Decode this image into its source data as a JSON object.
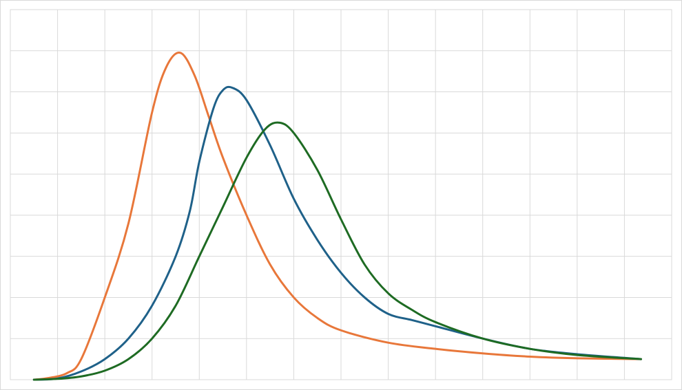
{
  "chart_data": {
    "type": "line",
    "title": "",
    "xlabel": "",
    "ylabel": "",
    "xlim": [
      0,
      14
    ],
    "ylim": [
      0,
      9
    ],
    "grid": true,
    "series": [
      {
        "color": "#e8773a",
        "points": [
          [
            0.5,
            0
          ],
          [
            0.8,
            0.04
          ],
          [
            1.2,
            0.16
          ],
          [
            1.5,
            0.5
          ],
          [
            2.0,
            2.0
          ],
          [
            2.5,
            3.8
          ],
          [
            3.0,
            6.5
          ],
          [
            3.3,
            7.6
          ],
          [
            3.6,
            7.95
          ],
          [
            3.9,
            7.4
          ],
          [
            4.2,
            6.4
          ],
          [
            4.5,
            5.4
          ],
          [
            5.0,
            4.0
          ],
          [
            5.5,
            2.8
          ],
          [
            6.0,
            2.0
          ],
          [
            6.5,
            1.5
          ],
          [
            7.0,
            1.2
          ],
          [
            8.0,
            0.9
          ],
          [
            9.0,
            0.75
          ],
          [
            10.0,
            0.64
          ],
          [
            11.0,
            0.56
          ],
          [
            12.0,
            0.52
          ],
          [
            13.35,
            0.5
          ]
        ]
      },
      {
        "color": "#1f6189",
        "points": [
          [
            0.5,
            0
          ],
          [
            1.0,
            0.03
          ],
          [
            1.5,
            0.2
          ],
          [
            2.0,
            0.5
          ],
          [
            2.5,
            1.0
          ],
          [
            3.0,
            1.8
          ],
          [
            3.5,
            3.0
          ],
          [
            3.8,
            4.1
          ],
          [
            4.0,
            5.3
          ],
          [
            4.3,
            6.6
          ],
          [
            4.5,
            7.04
          ],
          [
            4.7,
            7.1
          ],
          [
            5.0,
            6.8
          ],
          [
            5.5,
            5.7
          ],
          [
            6.0,
            4.4
          ],
          [
            6.5,
            3.4
          ],
          [
            7.0,
            2.6
          ],
          [
            7.5,
            2.0
          ],
          [
            8.0,
            1.6
          ],
          [
            8.5,
            1.45
          ],
          [
            9.0,
            1.3
          ],
          [
            10.0,
            1.0
          ],
          [
            11.0,
            0.75
          ],
          [
            12.0,
            0.62
          ],
          [
            13.35,
            0.5
          ]
        ]
      },
      {
        "color": "#1e6b23",
        "points": [
          [
            0.5,
            0
          ],
          [
            1.0,
            0.02
          ],
          [
            1.5,
            0.08
          ],
          [
            2.0,
            0.22
          ],
          [
            2.5,
            0.5
          ],
          [
            3.0,
            1.0
          ],
          [
            3.5,
            1.8
          ],
          [
            4.0,
            3.0
          ],
          [
            4.5,
            4.2
          ],
          [
            5.0,
            5.4
          ],
          [
            5.4,
            6.1
          ],
          [
            5.7,
            6.25
          ],
          [
            6.0,
            6.0
          ],
          [
            6.5,
            5.1
          ],
          [
            7.0,
            3.9
          ],
          [
            7.5,
            2.8
          ],
          [
            8.0,
            2.1
          ],
          [
            8.5,
            1.7
          ],
          [
            9.0,
            1.4
          ],
          [
            10.0,
            1.0
          ],
          [
            11.0,
            0.75
          ],
          [
            12.0,
            0.6
          ],
          [
            13.35,
            0.5
          ]
        ]
      }
    ]
  }
}
